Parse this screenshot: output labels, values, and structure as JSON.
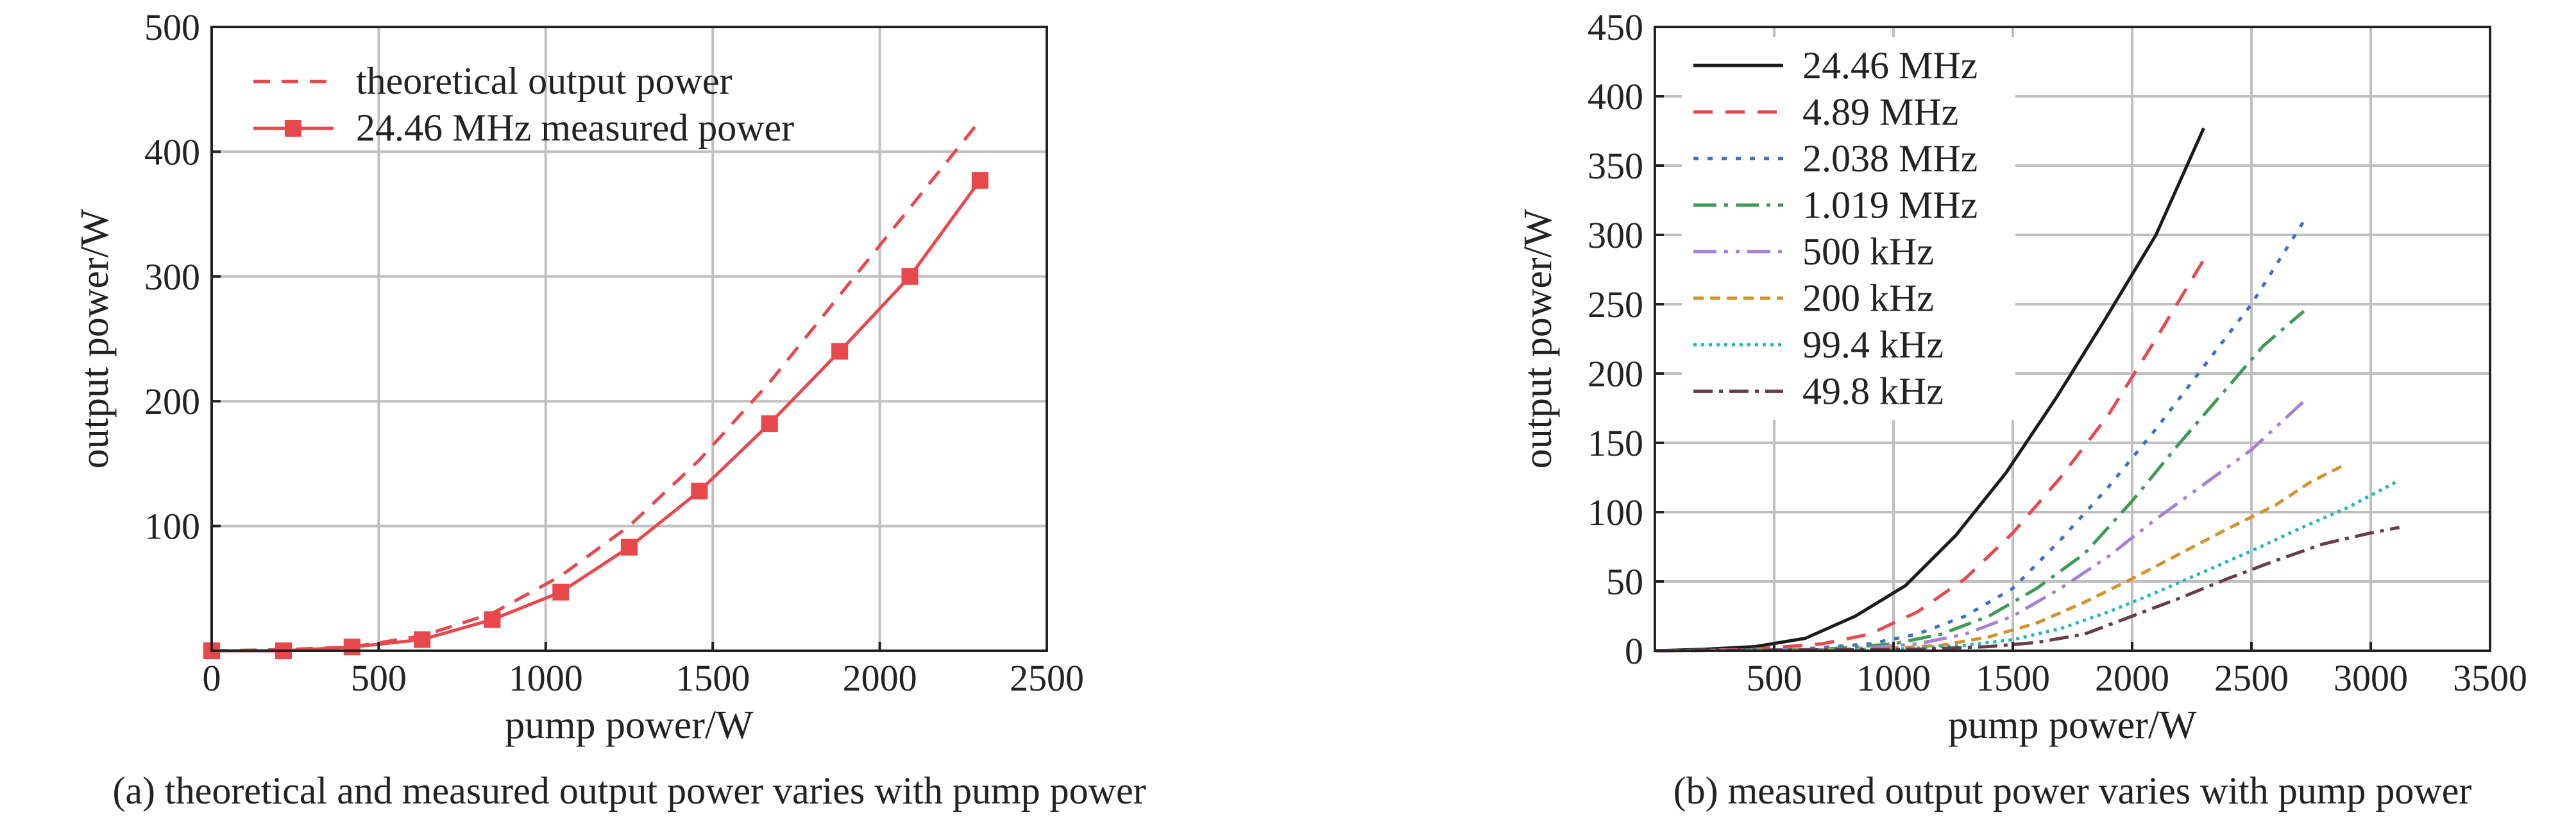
{
  "chart_data": [
    {
      "id": "a",
      "type": "line",
      "caption": "(a) theoretical and measured output power varies with pump power",
      "xlabel": "pump power/W",
      "ylabel": "output power/W",
      "xlim": [
        0,
        2500
      ],
      "ylim": [
        0,
        500
      ],
      "xticks": [
        0,
        500,
        1000,
        1500,
        2000,
        2500
      ],
      "yticks": [
        100,
        200,
        300,
        400,
        500
      ],
      "grid": true,
      "legend_position": "top-left",
      "series": [
        {
          "name": "theoretical output power",
          "color": "#e8474c",
          "dash": "26,18",
          "marker": "none",
          "x": [
            0,
            215,
            420,
            630,
            840,
            1045,
            1250,
            1460,
            1670,
            1880,
            2090,
            2300
          ],
          "y": [
            0,
            1,
            3,
            12,
            30,
            60,
            100,
            153,
            215,
            285,
            355,
            425
          ]
        },
        {
          "name": "24.46 MHz measured power",
          "color": "#e8474c",
          "dash": "",
          "marker": "square",
          "x": [
            0,
            215,
            420,
            630,
            840,
            1045,
            1250,
            1460,
            1670,
            1880,
            2090,
            2300
          ],
          "y": [
            0,
            0,
            3,
            9,
            25,
            47,
            83,
            128,
            182,
            240,
            300,
            377
          ]
        }
      ]
    },
    {
      "id": "b",
      "type": "line",
      "caption": "(b) measured output power varies with pump power",
      "xlabel": "pump power/W",
      "ylabel": "output power/W",
      "xlim": [
        0,
        3500
      ],
      "ylim": [
        0,
        450
      ],
      "xticks": [
        500,
        1000,
        1500,
        2000,
        2500,
        3000,
        3500
      ],
      "yticks": [
        0,
        50,
        100,
        150,
        200,
        250,
        300,
        350,
        400,
        450
      ],
      "grid": true,
      "legend_position": "top-left",
      "series": [
        {
          "name": "24.46 MHz",
          "color": "#1a1a1a",
          "dash": "",
          "x": [
            0,
            200,
            420,
            630,
            840,
            1050,
            1260,
            1470,
            1680,
            1890,
            2100,
            2300
          ],
          "y": [
            0,
            1,
            3,
            9,
            25,
            47,
            83,
            128,
            182,
            240,
            300,
            377
          ]
        },
        {
          "name": "4.89 MHz",
          "color": "#e8474c",
          "dash": "30,20",
          "x": [
            0,
            400,
            700,
            900,
            1100,
            1300,
            1500,
            1700,
            1900,
            2100,
            2300
          ],
          "y": [
            0,
            1,
            5,
            12,
            28,
            52,
            85,
            125,
            170,
            225,
            282
          ]
        },
        {
          "name": "2.038 MHz",
          "color": "#3a6fd0",
          "dash": "8,14",
          "x": [
            0,
            600,
            900,
            1100,
            1300,
            1500,
            1700,
            1900,
            2100,
            2300,
            2500,
            2720
          ],
          "y": [
            0,
            1,
            5,
            12,
            25,
            45,
            80,
            118,
            160,
            205,
            250,
            310
          ]
        },
        {
          "name": "1.019 MHz",
          "color": "#3f9a55",
          "dash": "36,12,6,12",
          "x": [
            0,
            700,
            1000,
            1200,
            1400,
            1600,
            1800,
            2000,
            2200,
            2400,
            2550,
            2720
          ],
          "y": [
            0,
            1,
            5,
            12,
            25,
            45,
            70,
            108,
            150,
            190,
            220,
            245
          ]
        },
        {
          "name": "500 kHz",
          "color": "#a77fd3",
          "dash": "36,12,6,12,6,12",
          "x": [
            0,
            800,
            1100,
            1300,
            1500,
            1700,
            1900,
            2100,
            2300,
            2500,
            2720
          ],
          "y": [
            0,
            1,
            5,
            12,
            25,
            45,
            68,
            95,
            120,
            145,
            180
          ]
        },
        {
          "name": "200 kHz",
          "color": "#d4922a",
          "dash": "16,10",
          "x": [
            0,
            900,
            1200,
            1400,
            1600,
            1800,
            2000,
            2200,
            2400,
            2600,
            2750,
            2900
          ],
          "y": [
            0,
            1,
            4,
            10,
            20,
            35,
            52,
            70,
            88,
            105,
            122,
            135
          ]
        },
        {
          "name": "99.4 kHz",
          "color": "#22b5c9",
          "dash": "5,7",
          "x": [
            0,
            1000,
            1300,
            1500,
            1700,
            1900,
            2100,
            2300,
            2500,
            2700,
            2900,
            3120
          ],
          "y": [
            0,
            1,
            4,
            8,
            16,
            28,
            42,
            57,
            72,
            88,
            103,
            123
          ]
        },
        {
          "name": "49.8 kHz",
          "color": "#6a3b4a",
          "dash": "30,10,6,10",
          "x": [
            0,
            1100,
            1400,
            1600,
            1800,
            2000,
            2200,
            2400,
            2600,
            2800,
            3000,
            3120
          ],
          "y": [
            0,
            1,
            3,
            6,
            12,
            25,
            38,
            52,
            65,
            77,
            85,
            89
          ]
        }
      ]
    }
  ]
}
